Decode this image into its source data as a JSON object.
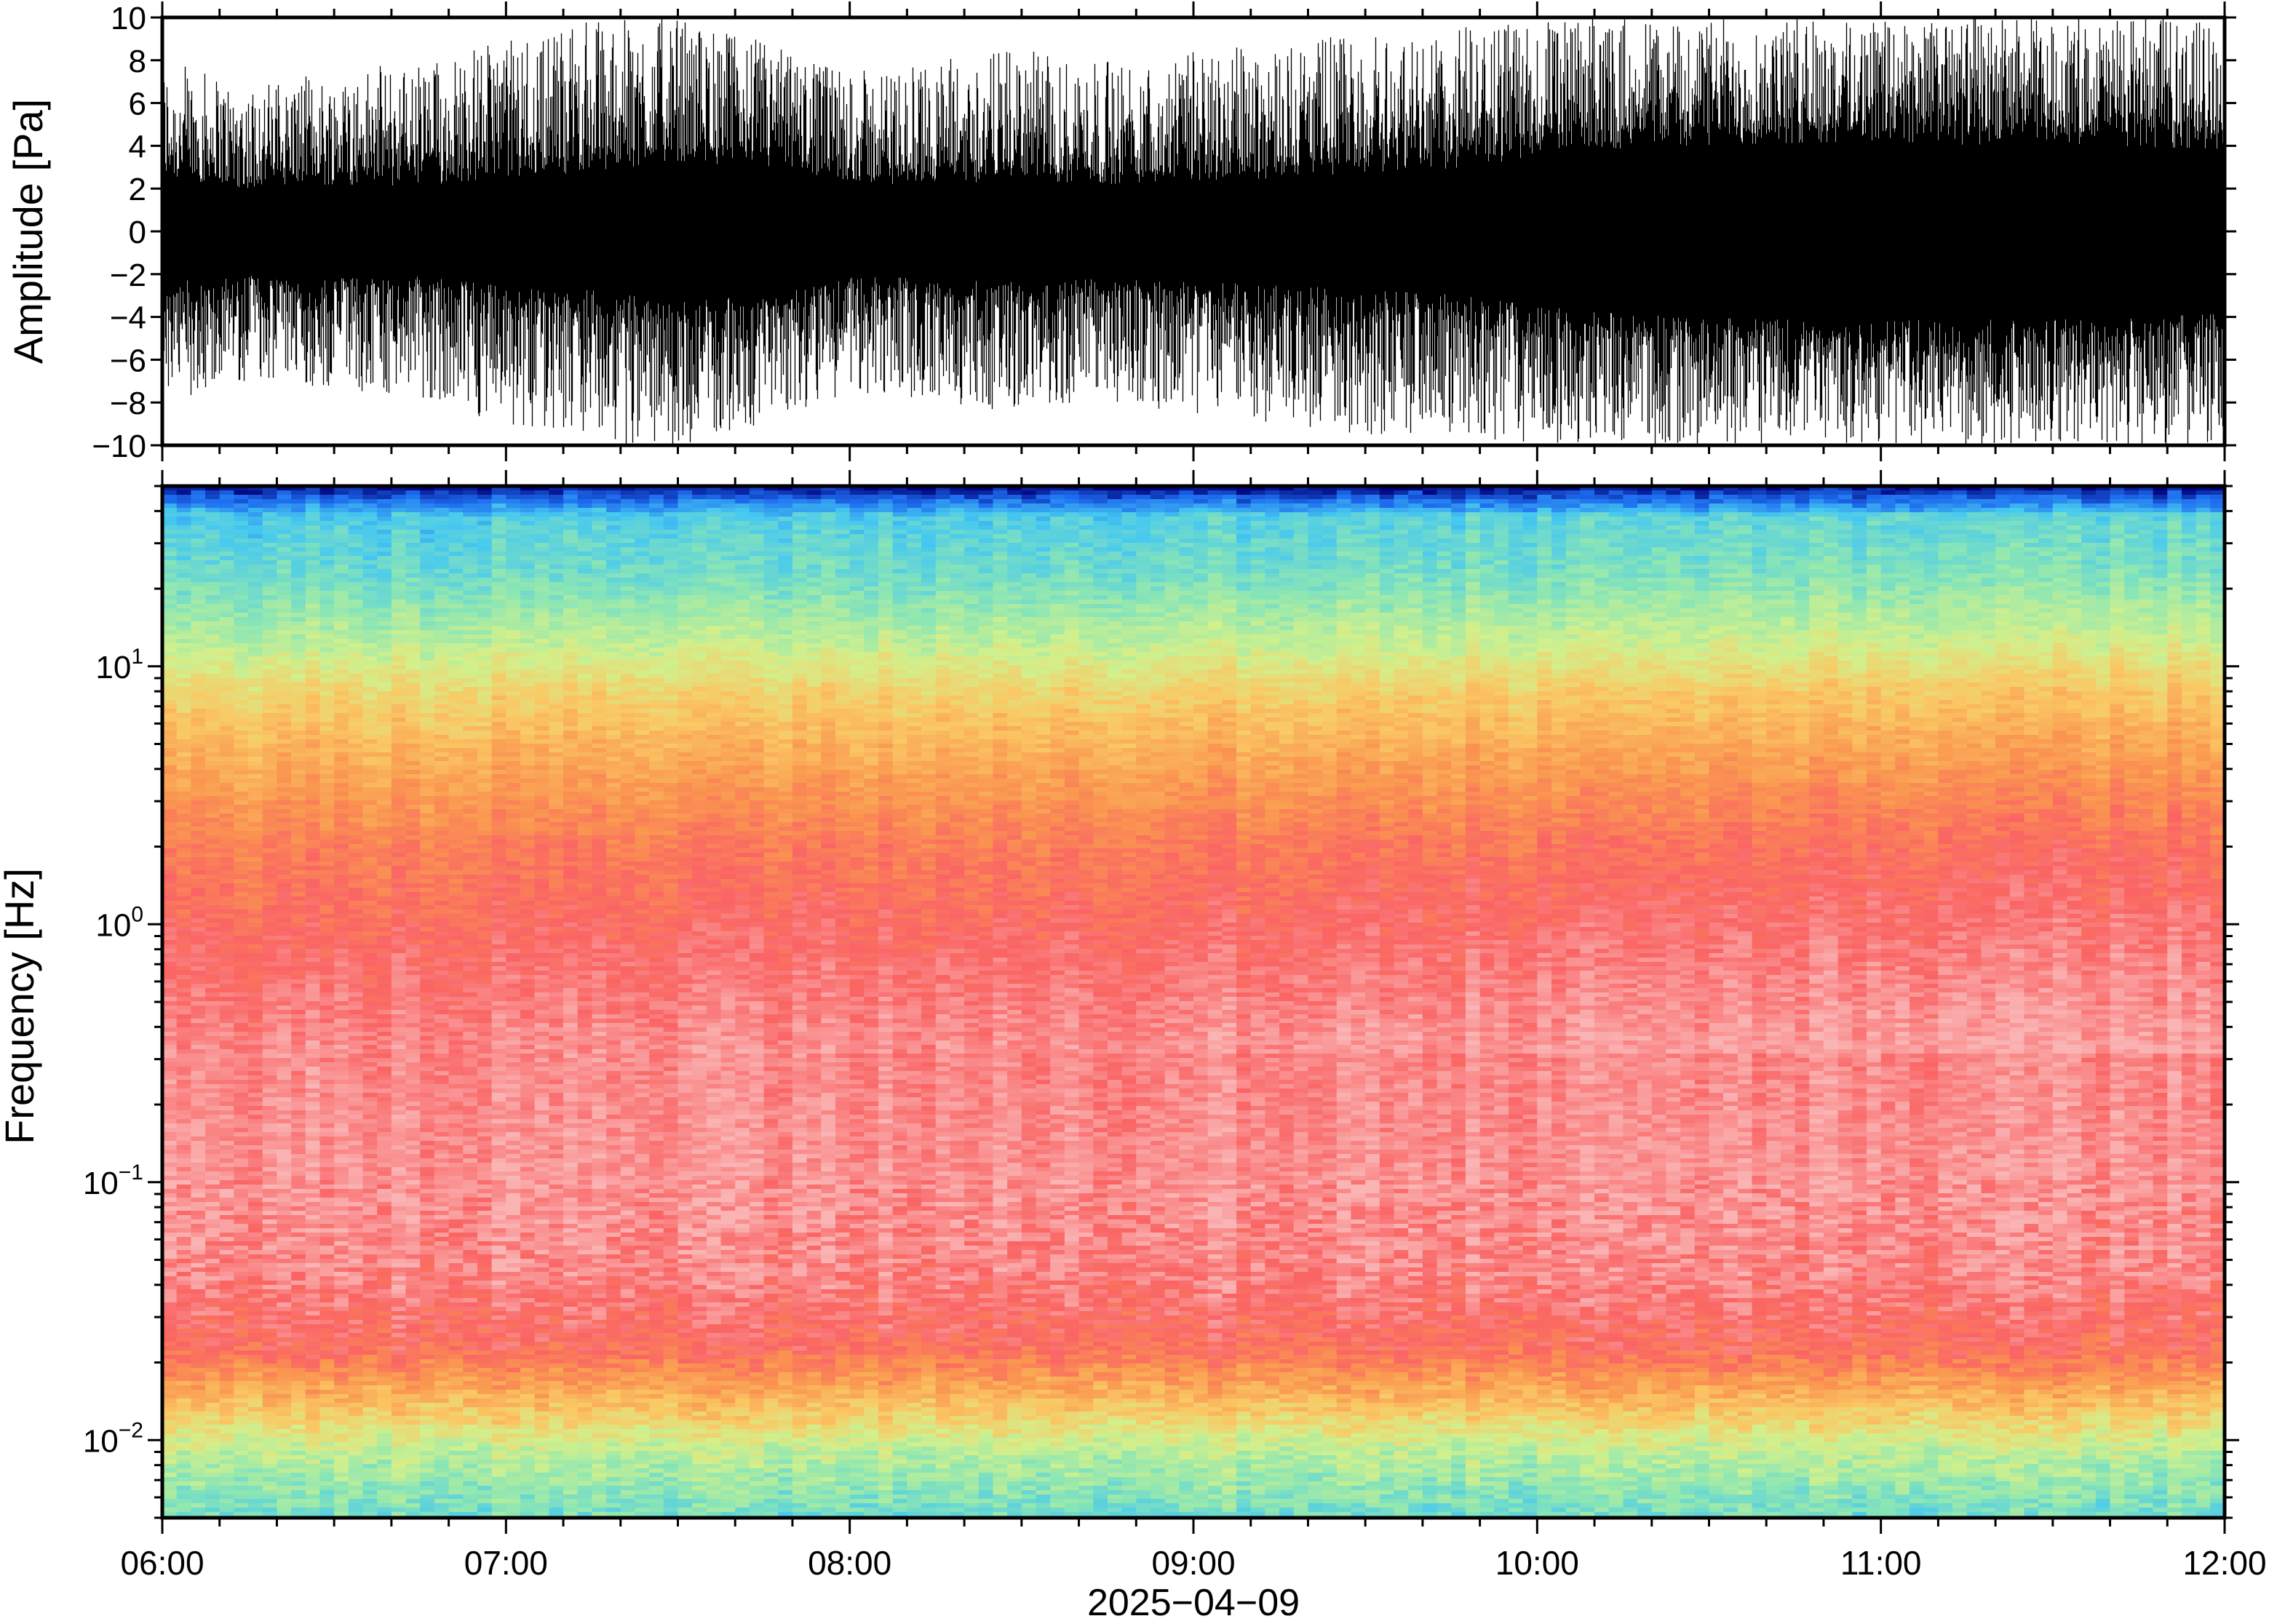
{
  "chart_data": [
    {
      "type": "line",
      "panel": "waveform",
      "title": "",
      "xlabel": "",
      "ylabel": "Amplitude [Pa]",
      "ylim": [
        -10,
        10
      ],
      "xlim": [
        "06:00",
        "12:00"
      ],
      "y_ticks": [
        "10",
        "8",
        "6",
        "4",
        "2",
        "0",
        "−2",
        "−4",
        "−6",
        "−8",
        "−10"
      ],
      "y_tick_values": [
        10,
        8,
        6,
        4,
        2,
        0,
        -2,
        -4,
        -6,
        -8,
        -10
      ],
      "grid": false,
      "color": "#000000",
      "envelope": {
        "x_hours": [
          0,
          0.25,
          0.5,
          0.75,
          1.0,
          1.25,
          1.5,
          1.75,
          2.0,
          2.25,
          2.5,
          2.75,
          3.0,
          3.25,
          3.5,
          3.75,
          4.0,
          4.25,
          4.5,
          4.75,
          5.0,
          5.25,
          5.5,
          5.75,
          6.0
        ],
        "core_amplitude": [
          2.6,
          2.2,
          2.4,
          2.3,
          2.8,
          3.0,
          3.6,
          3.2,
          2.3,
          2.4,
          2.6,
          2.4,
          2.6,
          2.7,
          3.0,
          3.2,
          3.8,
          4.2,
          4.4,
          4.5,
          4.6,
          4.4,
          4.5,
          4.3,
          4.2
        ],
        "peak_amplitude": [
          8.0,
          7.0,
          7.5,
          8.0,
          9.0,
          10.0,
          10.0,
          9.0,
          7.5,
          8.0,
          8.5,
          8.0,
          8.5,
          9.0,
          9.5,
          9.5,
          10.0,
          10.0,
          10.0,
          10.0,
          10.0,
          10.0,
          10.0,
          10.0,
          10.0
        ]
      }
    },
    {
      "type": "heatmap",
      "panel": "spectrogram",
      "title": "",
      "xlabel": "2025−04−09",
      "ylabel": "Frequency [Hz]",
      "y_scale": "log",
      "ylim": [
        0.005,
        50
      ],
      "x_ticks": [
        "06:00",
        "07:00",
        "08:00",
        "09:00",
        "10:00",
        "11:00",
        "12:00"
      ],
      "x_tick_hours": [
        0,
        1,
        2,
        3,
        4,
        5,
        6
      ],
      "y_ticks": [
        {
          "base": "10",
          "exp": "1",
          "value": 10
        },
        {
          "base": "10",
          "exp": "0",
          "value": 1
        },
        {
          "base": "10",
          "exp": "−1",
          "value": 0.1
        },
        {
          "base": "10",
          "exp": "−2",
          "value": 0.01
        }
      ],
      "grid": false,
      "colormap": [
        "#00007a",
        "#1e6ef0",
        "#46c8f0",
        "#8ce6b4",
        "#d2f08c",
        "#fac864",
        "#fa9650",
        "#fa6464",
        "#fab4b4"
      ],
      "typical_band_colors": [
        {
          "f_low": 30,
          "f_high": 50,
          "color": "#46c8f0"
        },
        {
          "f_low": 10,
          "f_high": 30,
          "color": "#a6e8a8"
        },
        {
          "f_low": 3,
          "f_high": 10,
          "color": "#fac864"
        },
        {
          "f_low": 0.5,
          "f_high": 3,
          "color": "#f97064"
        },
        {
          "f_low": 0.05,
          "f_high": 0.5,
          "color": "#f9a2a2"
        },
        {
          "f_low": 0.02,
          "f_high": 0.05,
          "color": "#f86464"
        },
        {
          "f_low": 0.01,
          "f_high": 0.02,
          "color": "#fab050"
        },
        {
          "f_low": 0.005,
          "f_high": 0.01,
          "color": "#d2f08c"
        }
      ]
    }
  ]
}
